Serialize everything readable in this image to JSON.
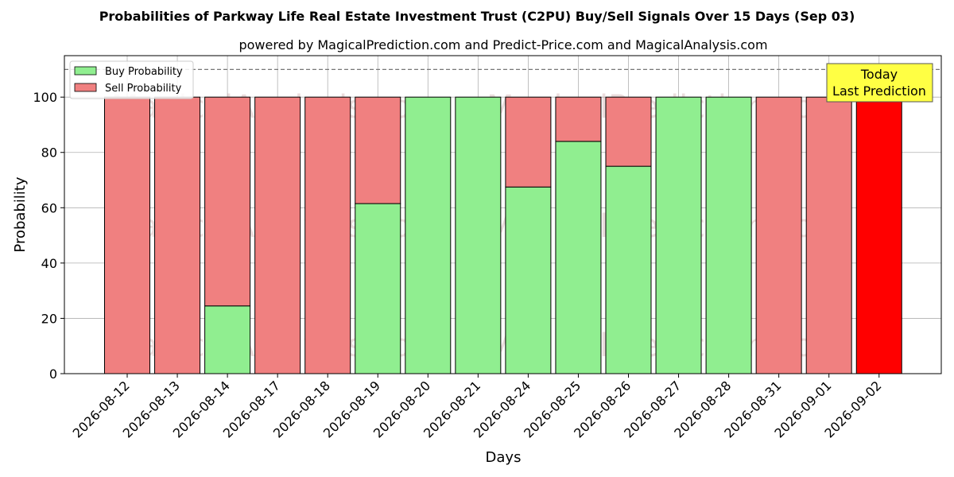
{
  "chart_data": {
    "type": "bar",
    "stacked": true,
    "title": "Probabilities of Parkway Life Real Estate Investment Trust (C2PU) Buy/Sell Signals Over 15 Days (Sep 03)",
    "subtitle": "powered by MagicalPrediction.com and Predict-Price.com and MagicalAnalysis.com",
    "xlabel": "Days",
    "ylabel": "Probability",
    "ylim": [
      0,
      115
    ],
    "yticks": [
      0,
      20,
      40,
      60,
      80,
      100
    ],
    "grid": true,
    "legend_position": "top-left",
    "reference_line": 110,
    "categories": [
      "2026-08-12",
      "2026-08-13",
      "2026-08-14",
      "2026-08-17",
      "2026-08-18",
      "2026-08-19",
      "2026-08-20",
      "2026-08-21",
      "2026-08-24",
      "2026-08-25",
      "2026-08-26",
      "2026-08-27",
      "2026-08-28",
      "2026-08-31",
      "2026-09-01",
      "2026-09-02"
    ],
    "series": [
      {
        "name": "Buy Probability",
        "color": "#90ee90",
        "values": [
          0,
          0,
          24.5,
          0,
          0,
          61.5,
          100,
          100,
          67.5,
          84,
          75,
          100,
          100,
          0,
          0,
          0
        ]
      },
      {
        "name": "Sell Probability",
        "color": "#f08080",
        "values": [
          100,
          100,
          75.5,
          100,
          100,
          38.5,
          0,
          0,
          32.5,
          16,
          25,
          0,
          0,
          100,
          100,
          100
        ]
      }
    ],
    "highlight": {
      "index": 15,
      "color": "#ff0000"
    },
    "annotation": {
      "lines": [
        "Today",
        "Last Prediction"
      ],
      "color": "#ffff44"
    },
    "watermarks": [
      "MagicalAnalysis.com",
      "MagicalPrediction.com"
    ]
  }
}
